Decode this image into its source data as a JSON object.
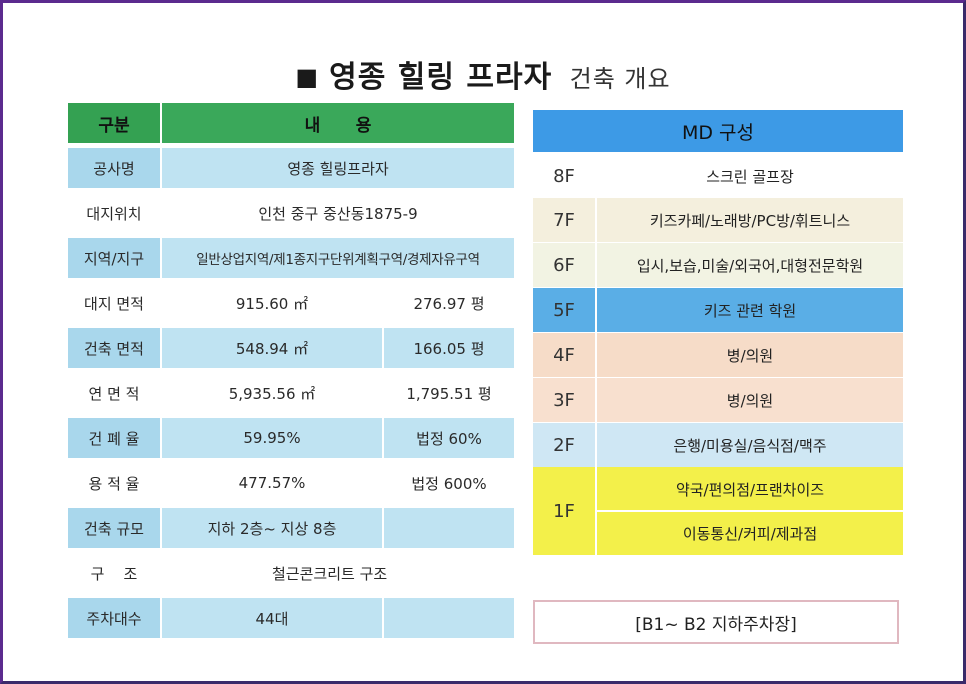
{
  "title": {
    "bullet": "■",
    "main": "영종 힐링 프라자",
    "sub": "건축 개요"
  },
  "left_table": {
    "headers": [
      "구분",
      "내      용"
    ],
    "rows": [
      {
        "label": "공사명",
        "value": "영종 힐링프라자"
      },
      {
        "label": "대지위치",
        "value": "인천 중구 중산동1875-9"
      },
      {
        "label": "지역/지구",
        "value": "일반상업지역/제1종지구단위계획구역/경제자유구역"
      },
      {
        "label": "대지 면적",
        "value": "915.60 ㎡",
        "value2": "276.97 평"
      },
      {
        "label": "건축 면적",
        "value": "548.94 ㎡",
        "value2": "166.05 평"
      },
      {
        "label": "연 면 적",
        "value": "5,935.56 ㎡",
        "value2": "1,795.51 평"
      },
      {
        "label": "건 폐 율",
        "value": "59.95%",
        "value2": "법정 60%"
      },
      {
        "label": "용 적 율",
        "value": "477.57%",
        "value2": "법정 600%"
      },
      {
        "label": "건축 규모",
        "value": "지하 2층~ 지상 8층",
        "value2": ""
      },
      {
        "label": "구    조",
        "value": "철근콘크리트 구조"
      },
      {
        "label": "주차대수",
        "value": "44대",
        "value2": ""
      }
    ]
  },
  "md_table": {
    "header": "MD 구성",
    "floors": [
      {
        "floor": "8F",
        "desc": "스크린 골프장"
      },
      {
        "floor": "7F",
        "desc": "키즈카페/노래방/PC방/휘트니스"
      },
      {
        "floor": "6F",
        "desc": "입시,보습,미술/외국어,대형전문학원"
      },
      {
        "floor": "5F",
        "desc": "키즈 관련 학원"
      },
      {
        "floor": "4F",
        "desc": "병/의원"
      },
      {
        "floor": "3F",
        "desc": "병/의원"
      },
      {
        "floor": "2F",
        "desc": "은행/미용실/음식점/맥주"
      },
      {
        "floor": "1F",
        "desc": "약국/편의점/프랜차이즈",
        "desc2": "이동통신/커피/제과점"
      }
    ],
    "basement": "[B1~ B2 지하주차장]"
  },
  "colors": {
    "header_green": "#3aa85a",
    "row_blue": "#bfe3f2",
    "md_header_blue": "#3d9ae6",
    "floor_7f": "#f4efdd",
    "floor_6f": "#f2f3e3",
    "floor_5f": "#5aaee6",
    "floor_4f": "#f6dcc8",
    "floor_3f": "#f8e0cf",
    "floor_2f": "#cfe7f4",
    "floor_1f": "#f3f04a"
  }
}
